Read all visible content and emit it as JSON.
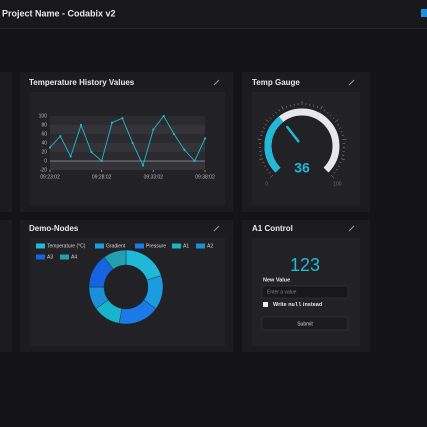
{
  "header": {
    "title": "Project Name - Codabix v2"
  },
  "chart_data": [
    {
      "type": "line",
      "title": "Temperature History Values",
      "color": "#22b8d8",
      "categories": [
        "09:23:02",
        null,
        null,
        null,
        null,
        "09:28:02",
        null,
        null,
        null,
        null,
        "09:33:02",
        null,
        null,
        null,
        null,
        "09:38:02"
      ],
      "values": [
        30,
        55,
        10,
        80,
        20,
        0,
        85,
        95,
        40,
        -10,
        70,
        100,
        60,
        25,
        0,
        50
      ],
      "ylim": [
        -20,
        100
      ],
      "yticks": [
        -20,
        0,
        20,
        40,
        60,
        80,
        100
      ],
      "grid": true
    },
    {
      "type": "gauge",
      "title": "Temp Gauge",
      "value": 36,
      "color": "#22b8d8",
      "ylim": [
        0,
        100
      ],
      "yticks": [
        0,
        100
      ]
    },
    {
      "type": "pie",
      "title": "Demo-Nodes",
      "donut": true,
      "categories": [
        "Temperature (°C)",
        "Gradient",
        "Pressure",
        "A1",
        "A2",
        "A3",
        "A4"
      ],
      "values": [
        20,
        15,
        18,
        12,
        10,
        15,
        10
      ],
      "colors": [
        "#1fb8d8",
        "#1b9ce0",
        "#1a7ae8",
        "#18b4c9",
        "#1c8fd8",
        "#1565e0",
        "#20a0b0"
      ]
    }
  ],
  "control": {
    "title": "A1 Control",
    "value": 123,
    "label": "New Value",
    "placeholder": "Enter a value",
    "checkbox_prefix": "Write ",
    "checkbox_code": "null",
    "checkbox_suffix": " instead",
    "button": "Submit"
  }
}
